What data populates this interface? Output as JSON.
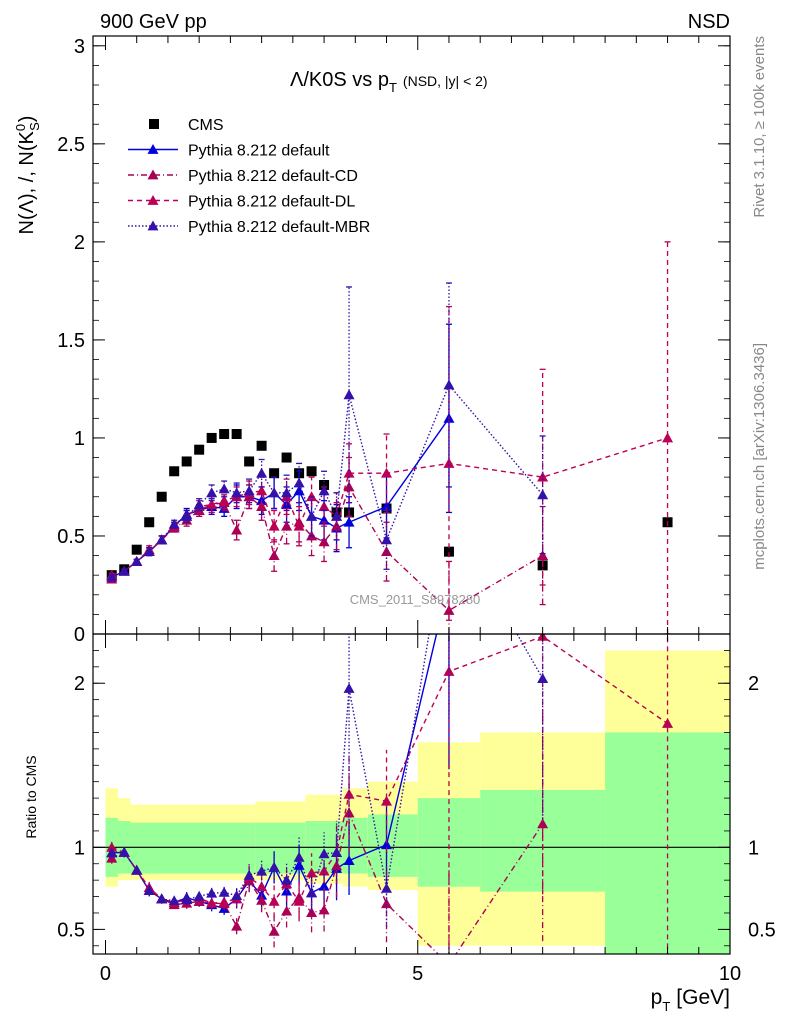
{
  "header": {
    "left": "900 GeV pp",
    "right": "NSD"
  },
  "title": {
    "main": "Λ/K0S vs p",
    "sub": "T",
    "suffix": "(NSD, |y| < 2)"
  },
  "side": {
    "rivet": "Rivet 3.1.10, ≥ 100k events",
    "mcplots": "mcplots.cern.ch [arXiv:1306.3436]"
  },
  "watermark": "CMS_2011_S8978280",
  "ylabel": {
    "top": "N(Λ), /, N(K",
    "top_sup": "0",
    "top_sub": "S",
    "top_end": ")",
    "ratio": "Ratio to CMS"
  },
  "xlabel": {
    "main": "p",
    "sub": "T",
    "unit": "[GeV]"
  },
  "legend": [
    {
      "label": "CMS",
      "color": "#000000",
      "marker": "square",
      "dash": ""
    },
    {
      "label": "Pythia 8.212 default",
      "color": "#0000dd",
      "marker": "triangle",
      "dash": ""
    },
    {
      "label": "Pythia 8.212 default-CD",
      "color": "#aa0055",
      "marker": "triangle",
      "dash": "6,3,1,3"
    },
    {
      "label": "Pythia 8.212 default-DL",
      "color": "#bb0055",
      "marker": "triangle",
      "dash": "5,4"
    },
    {
      "label": "Pythia 8.212 default-MBR",
      "color": "#3311aa",
      "marker": "triangle",
      "dash": "1.5,2"
    }
  ],
  "chart_data": {
    "type": "scatter",
    "x_range": [
      -0.2,
      10
    ],
    "main_ylim": [
      0,
      3.05
    ],
    "ratio_ylim": [
      0.35,
      2.3
    ],
    "main_yticks": [
      "0",
      "0.5",
      "1",
      "1.5",
      "2",
      "2.5",
      "3"
    ],
    "ratio_yticks": [
      "0.5",
      "1",
      "2"
    ],
    "xticks": [
      "0",
      "5",
      "10"
    ],
    "data": {
      "x": [
        0.1,
        0.3,
        0.5,
        0.7,
        0.9,
        1.1,
        1.3,
        1.5,
        1.7,
        1.9,
        2.1,
        2.3,
        2.5,
        2.7,
        2.9,
        3.1,
        3.3,
        3.5,
        3.7,
        3.9,
        4.5,
        5.5,
        7.0,
        9.0
      ],
      "y": [
        0.3,
        0.33,
        0.43,
        0.57,
        0.7,
        0.83,
        0.88,
        0.94,
        1.0,
        1.02,
        1.02,
        0.88,
        0.96,
        0.82,
        0.9,
        0.82,
        0.83,
        0.76,
        0.62,
        0.62,
        0.64,
        0.42,
        0.35,
        0.57
      ]
    },
    "band": [
      {
        "x": [
          0.0,
          0.2
        ],
        "g": [
          0.82,
          1.18
        ],
        "y": [
          0.76,
          1.36
        ]
      },
      {
        "x": [
          0.2,
          0.4
        ],
        "g": [
          0.84,
          1.16
        ],
        "y": [
          0.8,
          1.3
        ]
      },
      {
        "x": [
          0.4,
          2.4
        ],
        "g": [
          0.84,
          1.15
        ],
        "y": [
          0.8,
          1.26
        ]
      },
      {
        "x": [
          2.4,
          3.2
        ],
        "g": [
          0.84,
          1.15
        ],
        "y": [
          0.8,
          1.28
        ]
      },
      {
        "x": [
          3.2,
          3.8
        ],
        "g": [
          0.84,
          1.16
        ],
        "y": [
          0.78,
          1.32
        ]
      },
      {
        "x": [
          3.8,
          4.2
        ],
        "g": [
          0.84,
          1.18
        ],
        "y": [
          0.76,
          1.36
        ]
      },
      {
        "x": [
          4.2,
          5.0
        ],
        "g": [
          0.82,
          1.2
        ],
        "y": [
          0.74,
          1.4
        ]
      },
      {
        "x": [
          5.0,
          6.0
        ],
        "g": [
          0.76,
          1.3
        ],
        "y": [
          0.4,
          1.64
        ]
      },
      {
        "x": [
          6.0,
          8.0
        ],
        "g": [
          0.73,
          1.35
        ],
        "y": [
          0.4,
          1.7
        ]
      },
      {
        "x": [
          8.0,
          10.0
        ],
        "g": [
          0.35,
          1.7
        ],
        "y": [
          0.35,
          2.2
        ]
      }
    ],
    "series": [
      {
        "name": "Pythia 8.212 default",
        "color": "#0000dd",
        "dash": "",
        "x": [
          0.1,
          0.3,
          0.5,
          0.7,
          0.9,
          1.1,
          1.3,
          1.5,
          1.7,
          1.9,
          2.1,
          2.3,
          2.5,
          2.7,
          2.9,
          3.1,
          3.3,
          3.5,
          3.7,
          3.9,
          4.5,
          5.5
        ],
        "y": [
          0.29,
          0.32,
          0.37,
          0.42,
          0.48,
          0.55,
          0.61,
          0.63,
          0.65,
          0.64,
          0.7,
          0.7,
          0.68,
          0.72,
          0.66,
          0.73,
          0.6,
          0.58,
          0.54,
          0.57,
          0.65,
          1.1
        ],
        "e": [
          0.01,
          0.01,
          0.01,
          0.02,
          0.02,
          0.02,
          0.03,
          0.03,
          0.04,
          0.04,
          0.06,
          0.06,
          0.07,
          0.08,
          0.09,
          0.1,
          0.1,
          0.1,
          0.12,
          0.13,
          0.16,
          0.48
        ]
      },
      {
        "name": "Pythia 8.212 default-CD",
        "color": "#aa0055",
        "dash": "6,3,1,3",
        "x": [
          0.1,
          0.3,
          0.5,
          0.7,
          0.9,
          1.1,
          1.3,
          1.5,
          1.7,
          1.9,
          2.1,
          2.3,
          2.5,
          2.7,
          2.9,
          3.1,
          3.3,
          3.5,
          3.7,
          3.9,
          4.5,
          5.5,
          7.0
        ],
        "y": [
          0.28,
          0.32,
          0.37,
          0.42,
          0.48,
          0.54,
          0.58,
          0.63,
          0.66,
          0.67,
          0.53,
          0.7,
          0.65,
          0.4,
          0.55,
          0.57,
          0.5,
          0.47,
          0.55,
          0.75,
          0.42,
          0.12,
          0.4
        ],
        "e": [
          0.01,
          0.01,
          0.01,
          0.02,
          0.02,
          0.02,
          0.03,
          0.03,
          0.04,
          0.04,
          0.05,
          0.06,
          0.07,
          0.08,
          0.09,
          0.1,
          0.1,
          0.1,
          0.12,
          0.15,
          0.15,
          0.25,
          0.25
        ]
      },
      {
        "name": "Pythia 8.212 default-DL",
        "color": "#bb0055",
        "dash": "5,4",
        "x": [
          0.1,
          0.3,
          0.5,
          0.7,
          0.9,
          1.1,
          1.3,
          1.5,
          1.7,
          1.9,
          2.1,
          2.3,
          2.5,
          2.7,
          2.9,
          3.1,
          3.3,
          3.5,
          3.7,
          3.9,
          4.5,
          5.5,
          7.0,
          9.0
        ],
        "y": [
          0.3,
          0.32,
          0.37,
          0.43,
          0.48,
          0.55,
          0.6,
          0.65,
          0.66,
          0.68,
          0.7,
          0.72,
          0.73,
          0.55,
          0.7,
          0.55,
          0.7,
          0.65,
          0.6,
          0.82,
          0.82,
          0.87,
          0.8,
          1.0
        ],
        "e": [
          0.01,
          0.01,
          0.01,
          0.02,
          0.02,
          0.02,
          0.03,
          0.03,
          0.04,
          0.04,
          0.05,
          0.06,
          0.07,
          0.08,
          0.09,
          0.1,
          0.1,
          0.1,
          0.12,
          0.15,
          0.2,
          0.8,
          0.55,
          1.0
        ]
      },
      {
        "name": "Pythia 8.212 default-MBR",
        "color": "#3311aa",
        "dash": "1.5,2",
        "x": [
          0.1,
          0.3,
          0.5,
          0.7,
          0.9,
          1.1,
          1.3,
          1.5,
          1.7,
          1.9,
          2.1,
          2.3,
          2.5,
          2.7,
          2.9,
          3.1,
          3.3,
          3.5,
          3.7,
          3.9,
          4.5,
          5.5,
          7.0
        ],
        "y": [
          0.29,
          0.32,
          0.37,
          0.42,
          0.48,
          0.56,
          0.6,
          0.66,
          0.72,
          0.74,
          0.72,
          0.73,
          0.82,
          0.72,
          0.72,
          0.77,
          0.6,
          0.73,
          0.6,
          1.22,
          0.48,
          1.27,
          0.71
        ],
        "e": [
          0.01,
          0.01,
          0.01,
          0.02,
          0.02,
          0.02,
          0.03,
          0.03,
          0.04,
          0.04,
          0.05,
          0.06,
          0.07,
          0.08,
          0.09,
          0.1,
          0.1,
          0.1,
          0.12,
          0.55,
          0.15,
          0.52,
          0.3
        ]
      }
    ]
  }
}
